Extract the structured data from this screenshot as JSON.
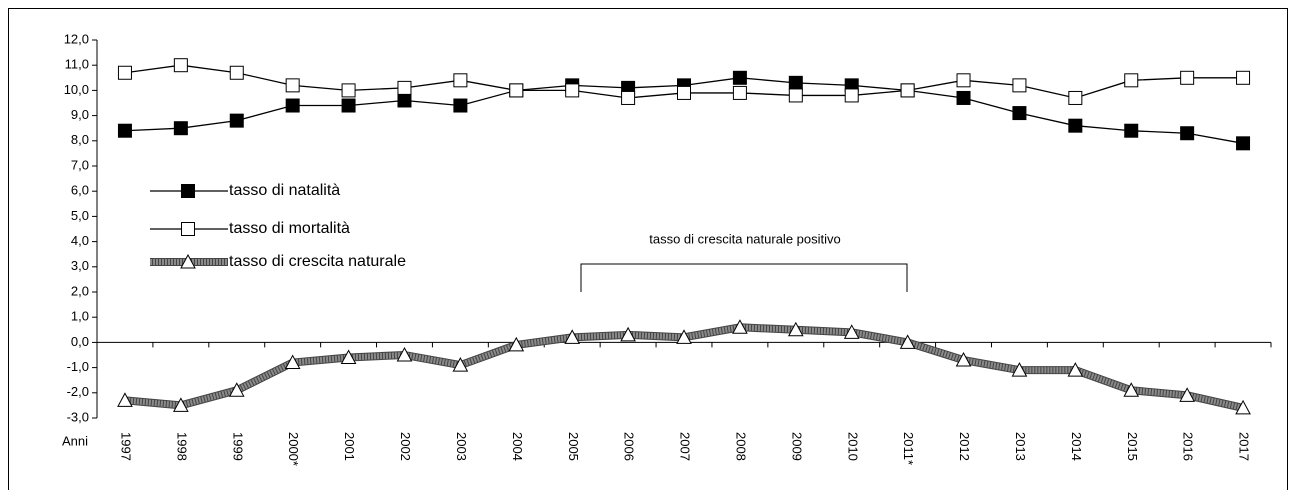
{
  "chart_data": {
    "type": "line",
    "x_label": "Anni",
    "annotation": "tasso di crescita naturale positivo",
    "categories": [
      "1997",
      "1998",
      "1999",
      "2000*",
      "2001",
      "2002",
      "2003",
      "2004",
      "2005",
      "2006",
      "2007",
      "2008",
      "2009",
      "2010",
      "2011*",
      "2012",
      "2013",
      "2014",
      "2015",
      "2016",
      "2017"
    ],
    "series": [
      {
        "name": "tasso di natalità",
        "color": "#000000",
        "marker": "square",
        "marker_fill": "#000000",
        "values": [
          8.4,
          8.5,
          8.8,
          9.4,
          9.4,
          9.6,
          9.4,
          10.0,
          10.2,
          10.1,
          10.2,
          10.5,
          10.3,
          10.2,
          10.0,
          9.7,
          9.1,
          8.6,
          8.4,
          8.3,
          7.9
        ]
      },
      {
        "name": "tasso di mortalità",
        "color": "#000000",
        "marker": "square",
        "marker_fill": "#ffffff",
        "values": [
          10.7,
          11.0,
          10.7,
          10.2,
          10.0,
          10.1,
          10.4,
          10.0,
          10.0,
          9.7,
          9.9,
          9.9,
          9.8,
          9.8,
          10.0,
          10.4,
          10.2,
          9.7,
          10.4,
          10.5,
          10.5
        ]
      },
      {
        "name": "tasso di crescita naturale",
        "color": "#8a8a8a",
        "marker": "triangle",
        "marker_fill": "#ffffff",
        "values": [
          -2.3,
          -2.5,
          -1.9,
          -0.8,
          -0.6,
          -0.5,
          -0.9,
          -0.1,
          0.2,
          0.3,
          0.2,
          0.6,
          0.5,
          0.4,
          0.0,
          -0.7,
          -1.1,
          -1.1,
          -1.9,
          -2.1,
          -2.6
        ]
      }
    ],
    "ylim": [
      -3,
      12
    ],
    "yticks": [
      {
        "value": -3,
        "label": "-3,0"
      },
      {
        "value": -2,
        "label": "-2,0"
      },
      {
        "value": -1,
        "label": "-1,0"
      },
      {
        "value": 0,
        "label": "0,0"
      },
      {
        "value": 1,
        "label": "1,0"
      },
      {
        "value": 2,
        "label": "2,0"
      },
      {
        "value": 3,
        "label": "3,0"
      },
      {
        "value": 4,
        "label": "4,0"
      },
      {
        "value": 5,
        "label": "5,0"
      },
      {
        "value": 6,
        "label": "6,0"
      },
      {
        "value": 7,
        "label": "7,0"
      },
      {
        "value": 8,
        "label": "8,0"
      },
      {
        "value": 9,
        "label": "9,0"
      },
      {
        "value": 10,
        "label": "10,0"
      },
      {
        "value": 11,
        "label": "11,0"
      },
      {
        "value": 12,
        "label": "12,0"
      }
    ],
    "grid": false
  }
}
